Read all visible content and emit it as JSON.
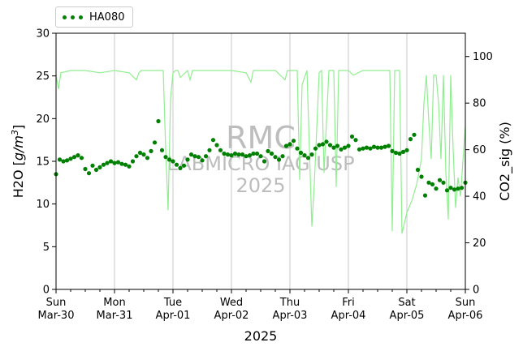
{
  "chart_data": {
    "type": "line",
    "xlabel": "2025",
    "x_ticks": [
      {
        "day": "Sun",
        "date": "Mar-30"
      },
      {
        "day": "Mon",
        "date": "Mar-31"
      },
      {
        "day": "Tue",
        "date": "Apr-01"
      },
      {
        "day": "Wed",
        "date": "Apr-02"
      },
      {
        "day": "Thu",
        "date": "Apr-03"
      },
      {
        "day": "Fri",
        "date": "Apr-04"
      },
      {
        "day": "Sat",
        "date": "Apr-05"
      },
      {
        "day": "Sun",
        "date": "Apr-06"
      }
    ],
    "xlim": [
      "2025-03-30",
      "2025-04-06"
    ],
    "grid": "vertical",
    "y_left": {
      "label": "H2O [g/m³]",
      "label_base": "H2O [",
      "label_italic": "g/m",
      "label_sup": "3",
      "label_tail": "]",
      "lim": [
        0,
        30
      ],
      "ticks": [
        0,
        5,
        10,
        15,
        20,
        25,
        30
      ]
    },
    "y_right": {
      "label": "CO2_sig (%)",
      "lim": [
        0,
        110
      ],
      "ticks": [
        0,
        20,
        40,
        60,
        80,
        100
      ]
    },
    "legend": {
      "position": "top-left",
      "entries": [
        "HA080"
      ]
    },
    "watermark": [
      "RMC",
      "LABMICRO IAG USP",
      "2025"
    ],
    "colors": {
      "h2o": "#008000",
      "co2": "#90ee90"
    },
    "series": [
      {
        "name": "HA080",
        "axis": "left",
        "style": "dots",
        "x": [
          "2025-03-30T00:00",
          "2025-03-30T01:30",
          "2025-03-30T03:00",
          "2025-03-30T04:30",
          "2025-03-30T06:00",
          "2025-03-30T07:30",
          "2025-03-30T09:00",
          "2025-03-30T10:30",
          "2025-03-30T12:00",
          "2025-03-30T13:30",
          "2025-03-30T15:00",
          "2025-03-30T16:30",
          "2025-03-30T18:00",
          "2025-03-30T19:30",
          "2025-03-30T21:00",
          "2025-03-30T22:30",
          "2025-03-31T00:00",
          "2025-03-31T01:30",
          "2025-03-31T03:00",
          "2025-03-31T04:30",
          "2025-03-31T06:00",
          "2025-03-31T07:30",
          "2025-03-31T09:00",
          "2025-03-31T10:30",
          "2025-03-31T12:00",
          "2025-03-31T13:30",
          "2025-03-31T15:00",
          "2025-03-31T16:30",
          "2025-03-31T18:00",
          "2025-03-31T19:30",
          "2025-03-31T21:00",
          "2025-03-31T22:30",
          "2025-04-01T00:00",
          "2025-04-01T01:30",
          "2025-04-01T03:00",
          "2025-04-01T04:30",
          "2025-04-01T06:00",
          "2025-04-01T07:30",
          "2025-04-01T09:00",
          "2025-04-01T10:30",
          "2025-04-01T12:00",
          "2025-04-01T13:30",
          "2025-04-01T15:00",
          "2025-04-01T16:30",
          "2025-04-01T18:00",
          "2025-04-01T19:30",
          "2025-04-01T21:00",
          "2025-04-01T22:30",
          "2025-04-02T00:00",
          "2025-04-02T01:30",
          "2025-04-02T03:00",
          "2025-04-02T04:30",
          "2025-04-02T06:00",
          "2025-04-02T07:30",
          "2025-04-02T09:00",
          "2025-04-02T10:30",
          "2025-04-02T12:00",
          "2025-04-02T13:30",
          "2025-04-02T15:00",
          "2025-04-02T16:30",
          "2025-04-02T18:00",
          "2025-04-02T19:30",
          "2025-04-02T21:00",
          "2025-04-02T22:30",
          "2025-04-03T00:00",
          "2025-04-03T01:30",
          "2025-04-03T03:00",
          "2025-04-03T04:30",
          "2025-04-03T06:00",
          "2025-04-03T07:30",
          "2025-04-03T09:00",
          "2025-04-03T10:30",
          "2025-04-03T12:00",
          "2025-04-03T13:30",
          "2025-04-03T15:00",
          "2025-04-03T16:30",
          "2025-04-03T18:00",
          "2025-04-03T19:30",
          "2025-04-03T21:00",
          "2025-04-03T22:30",
          "2025-04-04T00:00",
          "2025-04-04T01:30",
          "2025-04-04T03:00",
          "2025-04-04T04:30",
          "2025-04-04T06:00",
          "2025-04-04T07:30",
          "2025-04-04T09:00",
          "2025-04-04T10:30",
          "2025-04-04T12:00",
          "2025-04-04T13:30",
          "2025-04-04T15:00",
          "2025-04-04T16:30",
          "2025-04-04T18:00",
          "2025-04-04T19:30",
          "2025-04-04T21:00",
          "2025-04-04T22:30",
          "2025-04-05T00:00",
          "2025-04-05T01:30",
          "2025-04-05T03:00",
          "2025-04-05T04:30",
          "2025-04-05T06:00",
          "2025-04-05T07:30",
          "2025-04-05T09:00",
          "2025-04-05T10:30",
          "2025-04-05T12:00",
          "2025-04-05T13:30",
          "2025-04-05T15:00",
          "2025-04-05T16:30",
          "2025-04-05T18:00",
          "2025-04-05T19:30",
          "2025-04-05T21:00",
          "2025-04-05T22:30",
          "2025-04-06T00:00"
        ],
        "values": [
          13.5,
          15.2,
          15.0,
          15.1,
          15.3,
          15.5,
          15.7,
          15.4,
          14.1,
          13.6,
          14.5,
          14.0,
          14.3,
          14.6,
          14.8,
          15.0,
          14.8,
          14.9,
          14.7,
          14.6,
          14.4,
          15.0,
          15.6,
          16.0,
          15.8,
          15.4,
          16.2,
          17.2,
          19.7,
          16.3,
          15.5,
          15.2,
          15.0,
          14.6,
          14.2,
          14.5,
          15.2,
          15.8,
          15.6,
          15.5,
          15.1,
          15.6,
          16.3,
          17.5,
          16.9,
          16.3,
          15.9,
          15.8,
          15.7,
          15.9,
          15.8,
          15.8,
          15.6,
          15.7,
          15.9,
          15.9,
          15.6,
          15.0,
          16.2,
          15.9,
          15.5,
          15.2,
          15.6,
          16.8,
          17.0,
          17.4,
          16.5,
          16.0,
          15.7,
          15.4,
          15.8,
          16.5,
          16.9,
          17.0,
          17.3,
          16.9,
          16.6,
          16.8,
          16.4,
          16.6,
          16.8,
          17.9,
          17.5,
          16.4,
          16.5,
          16.6,
          16.5,
          16.7,
          16.6,
          16.6,
          16.7,
          16.8,
          16.2,
          16.0,
          15.9,
          16.1,
          16.3,
          17.6,
          18.1,
          14.0,
          13.2,
          11.0,
          12.5,
          12.3,
          11.8,
          12.8,
          12.5,
          11.6,
          11.9,
          11.7,
          11.8,
          11.9,
          12.5
        ]
      },
      {
        "name": "CO2_sig",
        "axis": "right",
        "style": "line",
        "x": [
          "2025-03-30T00:00",
          "2025-03-30T01:00",
          "2025-03-30T02:00",
          "2025-03-30T06:00",
          "2025-03-30T12:00",
          "2025-03-30T18:00",
          "2025-03-31T00:00",
          "2025-03-31T06:00",
          "2025-03-31T09:00",
          "2025-03-31T10:00",
          "2025-03-31T11:00",
          "2025-03-31T12:00",
          "2025-03-31T18:00",
          "2025-03-31T20:00",
          "2025-03-31T21:00",
          "2025-03-31T22:00",
          "2025-03-31T23:00",
          "2025-04-01T00:00",
          "2025-04-01T01:00",
          "2025-04-01T02:00",
          "2025-04-01T03:00",
          "2025-04-01T06:00",
          "2025-04-01T07:00",
          "2025-04-01T08:00",
          "2025-04-01T12:00",
          "2025-04-01T18:00",
          "2025-04-02T00:00",
          "2025-04-02T06:00",
          "2025-04-02T08:00",
          "2025-04-02T09:00",
          "2025-04-02T12:00",
          "2025-04-02T18:00",
          "2025-04-02T22:00",
          "2025-04-02T23:00",
          "2025-04-03T00:00",
          "2025-04-03T03:00",
          "2025-04-03T04:00",
          "2025-04-03T05:00",
          "2025-04-03T07:00",
          "2025-04-03T08:00",
          "2025-04-03T09:00",
          "2025-04-03T10:00",
          "2025-04-03T12:00",
          "2025-04-03T13:00",
          "2025-04-03T14:00",
          "2025-04-03T16:00",
          "2025-04-03T18:00",
          "2025-04-03T19:00",
          "2025-04-03T20:00",
          "2025-04-03T22:00",
          "2025-04-04T00:00",
          "2025-04-04T02:00",
          "2025-04-04T06:00",
          "2025-04-04T12:00",
          "2025-04-04T17:00",
          "2025-04-04T18:00",
          "2025-04-04T19:00",
          "2025-04-04T21:00",
          "2025-04-04T22:00",
          "2025-04-05T00:00",
          "2025-04-05T02:00",
          "2025-04-05T04:00",
          "2025-04-05T06:00",
          "2025-04-05T07:00",
          "2025-04-05T08:00",
          "2025-04-05T09:00",
          "2025-04-05T10:00",
          "2025-04-05T11:00",
          "2025-04-05T12:00",
          "2025-04-05T13:00",
          "2025-04-05T14:00",
          "2025-04-05T15:00",
          "2025-04-05T16:00",
          "2025-04-05T17:00",
          "2025-04-05T18:00",
          "2025-04-05T19:00",
          "2025-04-05T20:00",
          "2025-04-05T21:00",
          "2025-04-05T22:00",
          "2025-04-05T23:00",
          "2025-04-06T00:00"
        ],
        "values": [
          92,
          86,
          93,
          94,
          94,
          93,
          94,
          93,
          90,
          93,
          94,
          94,
          94,
          94,
          60,
          34,
          82,
          93,
          94,
          94,
          91,
          94,
          90,
          94,
          94,
          94,
          94,
          93,
          89,
          94,
          94,
          94,
          90,
          94,
          94,
          94,
          47,
          88,
          94,
          60,
          27,
          45,
          93,
          94,
          50,
          94,
          94,
          44,
          94,
          94,
          94,
          92,
          94,
          94,
          94,
          25,
          94,
          94,
          24,
          33,
          38,
          45,
          56,
          80,
          92,
          72,
          56,
          92,
          92,
          80,
          56,
          92,
          50,
          30,
          92,
          60,
          35,
          48,
          40,
          55,
          70
        ]
      }
    ]
  }
}
